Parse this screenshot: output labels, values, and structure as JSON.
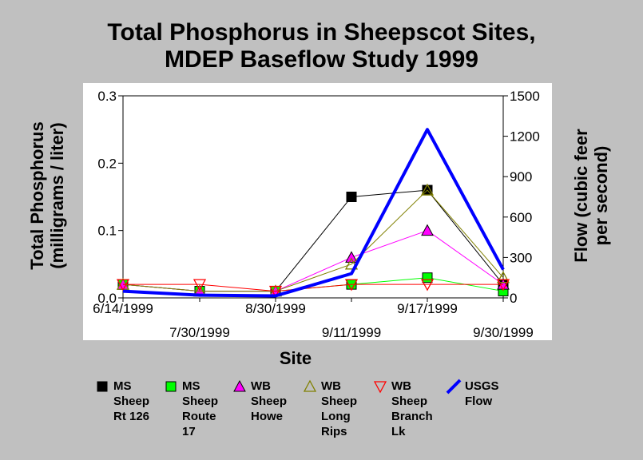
{
  "chart_data": {
    "type": "line",
    "title": "Total Phosphorus in Sheepscot Sites,\nMDEP Baseflow Study 1999",
    "xlabel": "Site",
    "ylabel": "Total Phosphorus\n(milligrams / liter)",
    "y2label": "Flow (cubic feer\nper second)",
    "categories": [
      "6/14/1999",
      "7/30/1999",
      "8/30/1999",
      "9/11/1999",
      "9/17/1999",
      "9/30/1999"
    ],
    "ylim": [
      0,
      0.3
    ],
    "yticks": [
      "0.0",
      "0.1",
      "0.2",
      "0.3"
    ],
    "y2lim": [
      0,
      1500
    ],
    "y2ticks": [
      "0",
      "300",
      "600",
      "900",
      "1200",
      "1500"
    ],
    "grid": false,
    "legend_position": "bottom",
    "series": [
      {
        "name": "MS\nSheep\nRt 126",
        "axis": "left",
        "color": "#000000",
        "marker": "square",
        "values": [
          0.02,
          0.01,
          0.01,
          0.15,
          0.16,
          0.02
        ]
      },
      {
        "name": "MS\nSheep\nRoute\n17",
        "axis": "left",
        "color": "#00ff00",
        "marker": "square",
        "values": [
          0.02,
          0.01,
          0.01,
          0.02,
          0.03,
          0.01
        ]
      },
      {
        "name": "WB\nSheep\nHowe",
        "axis": "left",
        "color": "#ff00ff",
        "marker": "triangle",
        "values": [
          0.02,
          0.01,
          0.01,
          0.06,
          0.1,
          0.02
        ]
      },
      {
        "name": "WB\nSheep\nLong\nRips",
        "axis": "left",
        "color": "#808000",
        "marker": "triangle-open",
        "values": [
          0.02,
          0.01,
          0.01,
          0.05,
          0.16,
          0.03
        ]
      },
      {
        "name": "WB\nSheep\nBranch\nLk",
        "axis": "left",
        "color": "#ff0000",
        "marker": "triangle-down-open",
        "values": [
          0.02,
          0.02,
          0.01,
          0.02,
          0.02,
          0.02
        ]
      },
      {
        "name": "USGS\nFlow",
        "axis": "right",
        "color": "#0000ff",
        "marker": "none",
        "values": [
          50,
          20,
          15,
          180,
          1250,
          210
        ]
      }
    ]
  }
}
